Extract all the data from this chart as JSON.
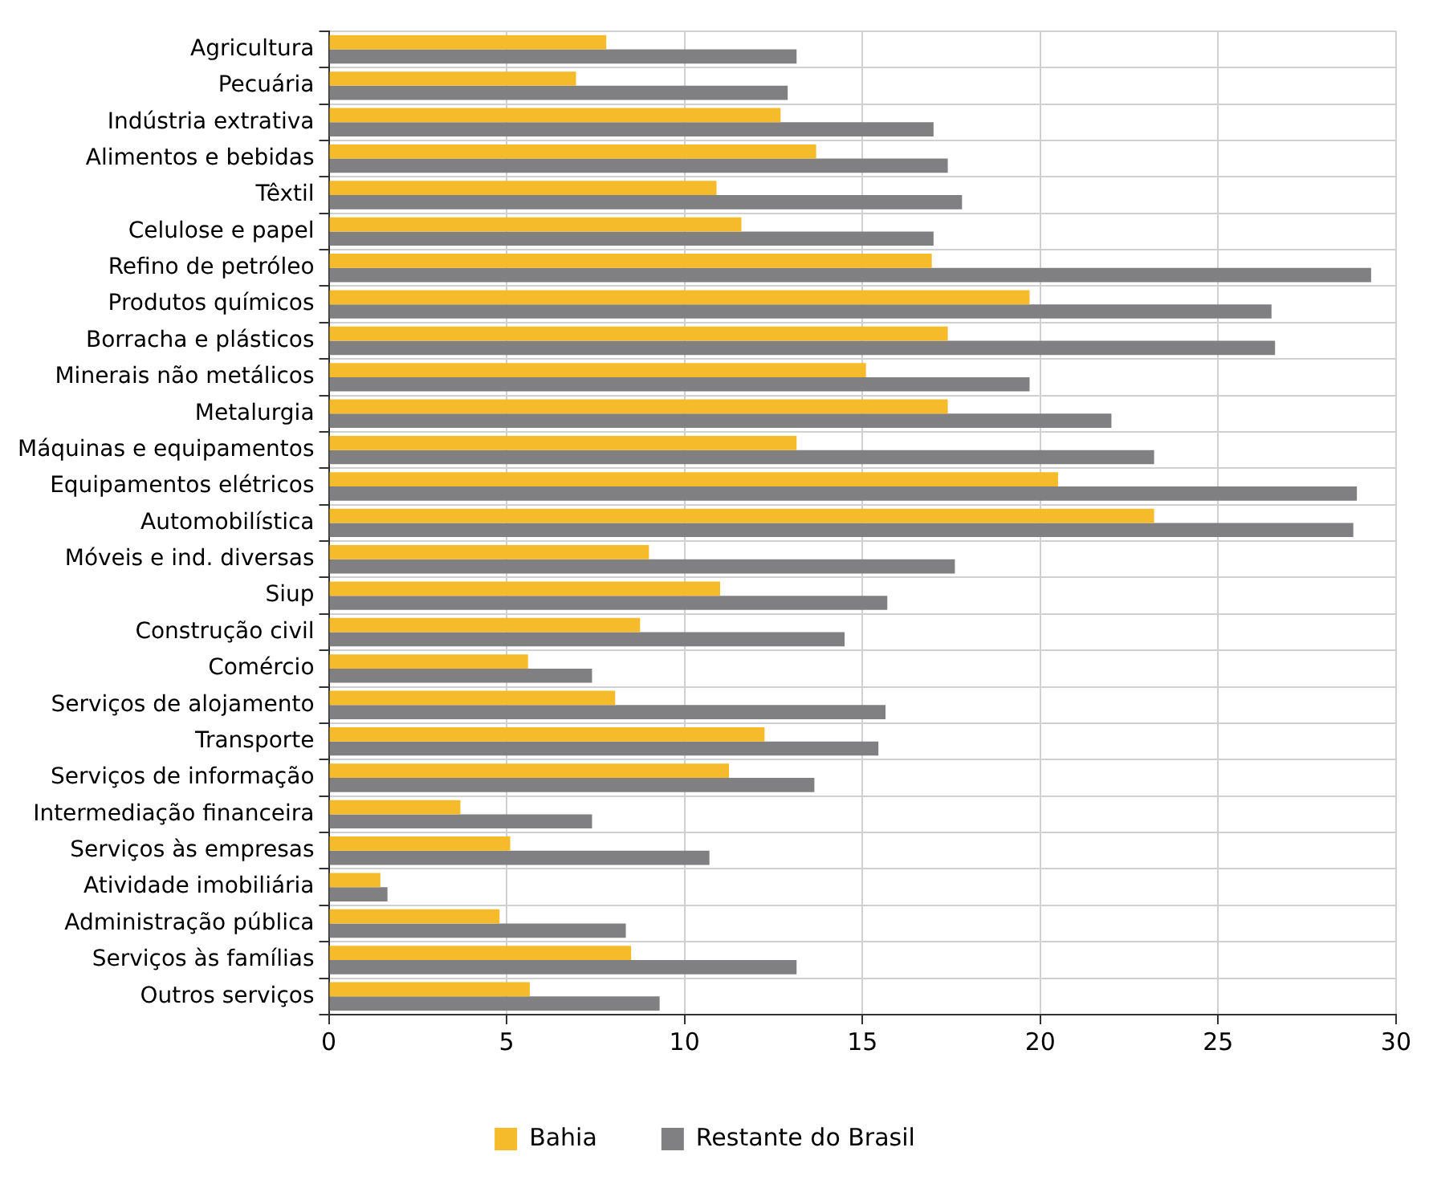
{
  "chart_data": {
    "type": "bar",
    "orientation": "horizontal",
    "categories": [
      "Agricultura",
      "Pecuária",
      "Indústria extrativa",
      "Alimentos e bebidas",
      "Têxtil",
      "Celulose e papel",
      "Refino de petróleo",
      "Produtos químicos",
      "Borracha e plásticos",
      "Minerais não metálicos",
      "Metalurgia",
      "Máquinas e equipamentos",
      "Equipamentos elétricos",
      "Automobilística",
      "Móveis e ind. diversas",
      "Siup",
      "Construção civil",
      "Comércio",
      "Serviços de alojamento",
      "Transporte",
      "Serviços de informação",
      "Intermediação financeira",
      "Serviços às empresas",
      "Atividade imobiliária",
      "Administração pública",
      "Serviços às famílias",
      "Outros serviços"
    ],
    "series": [
      {
        "name": "Bahia",
        "color": "#f5bb2a",
        "values": [
          7.8,
          6.95,
          12.7,
          13.7,
          10.9,
          11.6,
          16.95,
          19.7,
          17.4,
          15.1,
          17.4,
          13.15,
          20.5,
          23.2,
          9.0,
          11.0,
          8.75,
          5.6,
          8.05,
          12.25,
          11.25,
          3.7,
          5.1,
          1.45,
          4.8,
          8.5,
          5.65
        ]
      },
      {
        "name": "Restante do Brasil",
        "color": "#808083",
        "values": [
          13.15,
          12.9,
          17.0,
          17.4,
          17.8,
          17.0,
          29.3,
          26.5,
          26.6,
          19.7,
          22.0,
          23.2,
          28.9,
          28.8,
          17.6,
          15.7,
          14.5,
          7.4,
          15.65,
          15.45,
          13.65,
          7.4,
          10.7,
          1.65,
          8.35,
          13.15,
          9.3
        ]
      }
    ],
    "xlim": [
      0,
      30
    ],
    "xticks": [
      0,
      5,
      10,
      15,
      20,
      25,
      30
    ],
    "grid": true,
    "legend": "bottom"
  }
}
